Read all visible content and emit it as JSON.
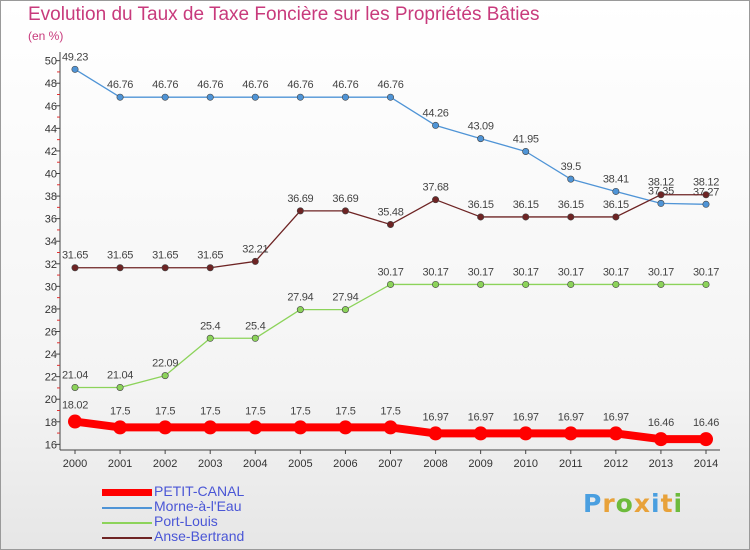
{
  "chart_data": {
    "type": "line",
    "title": "Evolution du Taux de Taxe Foncière sur les Propriétés Bâties",
    "unit_label": "(en %)",
    "categories": [
      "2000",
      "2001",
      "2002",
      "2003",
      "2004",
      "2005",
      "2006",
      "2007",
      "2008",
      "2009",
      "2010",
      "2011",
      "2012",
      "2013",
      "2014"
    ],
    "ylim": [
      15.5,
      50.5
    ],
    "yticks": [
      16,
      18,
      20,
      22,
      24,
      26,
      28,
      30,
      32,
      34,
      36,
      38,
      40,
      42,
      44,
      46,
      48,
      50
    ],
    "grid": false,
    "legend_position": "bottom-left",
    "series": [
      {
        "name": "PETIT-CANAL",
        "color": "#ff0000",
        "values": [
          18.02,
          17.5,
          17.5,
          17.5,
          17.5,
          17.5,
          17.5,
          17.5,
          16.97,
          16.97,
          16.97,
          16.97,
          16.97,
          16.46,
          16.46
        ],
        "labels": [
          "18.02",
          "17.5",
          "17.5",
          "17.5",
          "17.5",
          "17.5",
          "17.5",
          "17.5",
          "16.97",
          "16.97",
          "16.97",
          "16.97",
          "16.97",
          "16.46",
          "16.46"
        ]
      },
      {
        "name": "Morne-à-l'Eau",
        "color": "#4f94d6",
        "values": [
          49.23,
          46.76,
          46.76,
          46.76,
          46.76,
          46.76,
          46.76,
          46.76,
          44.26,
          43.09,
          41.95,
          39.5,
          38.41,
          37.35,
          37.27
        ],
        "labels": [
          "49.23",
          "46.76",
          "46.76",
          "46.76",
          "46.76",
          "46.76",
          "46.76",
          "46.76",
          "44.26",
          "43.09",
          "41.95",
          "39.5",
          "38.41",
          "37.35",
          "37.27"
        ]
      },
      {
        "name": "Port-Louis",
        "color": "#8cd35a",
        "values": [
          21.04,
          21.04,
          22.09,
          25.4,
          25.4,
          27.94,
          27.94,
          30.17,
          30.17,
          30.17,
          30.17,
          30.17,
          30.17,
          30.17,
          30.17
        ],
        "labels": [
          "21.04",
          "21.04",
          "22.09",
          "25.4",
          "25.4",
          "27.94",
          "27.94",
          "30.17",
          "30.17",
          "30.17",
          "30.17",
          "30.17",
          "30.17",
          "30.17",
          "30.17"
        ]
      },
      {
        "name": "Anse-Bertrand",
        "color": "#6e2424",
        "values": [
          31.65,
          31.65,
          31.65,
          31.65,
          32.21,
          36.69,
          36.69,
          35.48,
          37.68,
          36.15,
          36.15,
          36.15,
          36.15,
          38.12,
          38.12
        ],
        "labels": [
          "31.65",
          "31.65",
          "31.65",
          "31.65",
          "32.21",
          "36.69",
          "36.69",
          "35.48",
          "37.68",
          "36.15",
          "36.15",
          "36.15",
          "36.15",
          "38.12",
          "38.12"
        ]
      }
    ]
  },
  "brand": {
    "letters": [
      "P",
      "r",
      "o",
      "x",
      "i",
      "t",
      "i"
    ],
    "colors": [
      "#4a9fe0",
      "#e8a23a",
      "#6dbb3c",
      "#e8a23a",
      "#4a9fe0",
      "#e8a23a",
      "#6dbb3c"
    ]
  }
}
